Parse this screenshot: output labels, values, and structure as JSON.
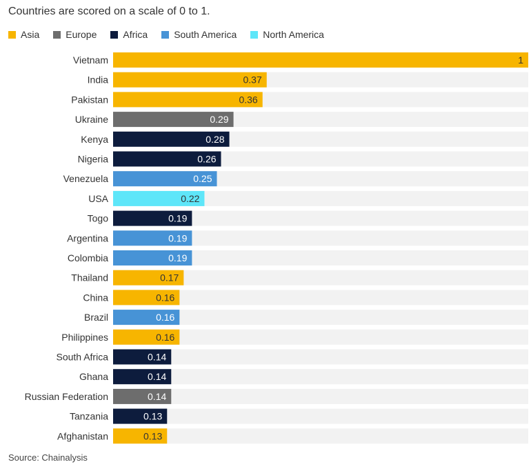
{
  "subtitle": "Countries are scored on a scale of 0 to 1.",
  "source": "Source: Chainalysis",
  "colors": {
    "Asia": "#f7b500",
    "Europe": "#6d6d6d",
    "Africa": "#0d1c3d",
    "South America": "#4793d6",
    "North America": "#5ee6f9",
    "track": "#f2f2f2"
  },
  "legend": [
    "Asia",
    "Europe",
    "Africa",
    "South America",
    "North America"
  ],
  "chart_data": {
    "type": "bar",
    "orientation": "horizontal",
    "title": "",
    "subtitle": "Countries are scored on a scale of 0 to 1.",
    "xlim": [
      0,
      1
    ],
    "grid": false,
    "legend_position": "top-left",
    "categories": [
      "Vietnam",
      "India",
      "Pakistan",
      "Ukraine",
      "Kenya",
      "Nigeria",
      "Venezuela",
      "USA",
      "Togo",
      "Argentina",
      "Colombia",
      "Thailand",
      "China",
      "Brazil",
      "Philippines",
      "South Africa",
      "Ghana",
      "Russian Federation",
      "Tanzania",
      "Afghanistan"
    ],
    "values": [
      1,
      0.37,
      0.36,
      0.29,
      0.28,
      0.26,
      0.25,
      0.22,
      0.19,
      0.19,
      0.19,
      0.17,
      0.16,
      0.16,
      0.16,
      0.14,
      0.14,
      0.14,
      0.13,
      0.13
    ],
    "value_labels": [
      "1",
      "0.37",
      "0.36",
      "0.29",
      "0.28",
      "0.26",
      "0.25",
      "0.22",
      "0.19",
      "0.19",
      "0.19",
      "0.17",
      "0.16",
      "0.16",
      "0.16",
      "0.14",
      "0.14",
      "0.14",
      "0.13",
      "0.13"
    ],
    "groups": [
      "Asia",
      "Asia",
      "Asia",
      "Europe",
      "Africa",
      "Africa",
      "South America",
      "North America",
      "Africa",
      "South America",
      "South America",
      "Asia",
      "Asia",
      "South America",
      "Asia",
      "Africa",
      "Africa",
      "Europe",
      "Africa",
      "Asia"
    ]
  }
}
